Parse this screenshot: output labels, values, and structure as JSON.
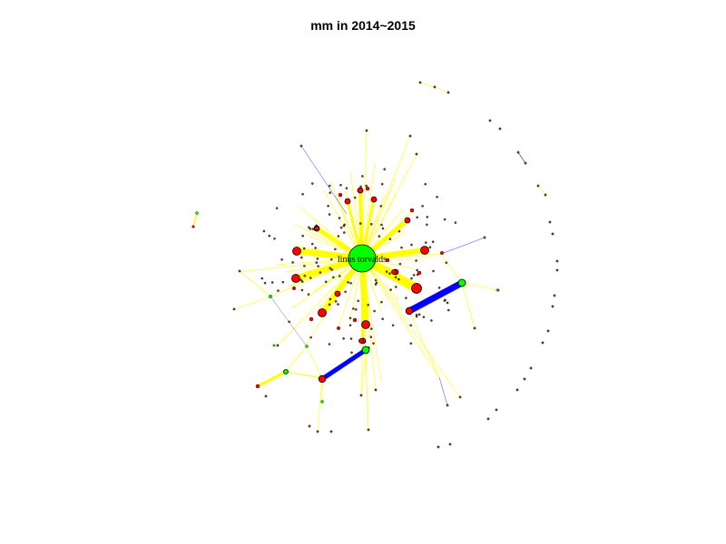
{
  "title": "mm in 2014~2015",
  "hub": {
    "label": "linus torvalds"
  },
  "colors": {
    "hub_node": "#00ff00",
    "red_node": "#ff0000",
    "green_node": "#00ff00",
    "small_node": "#8b4513",
    "yellow_edge": "#ffff00",
    "blue_edge": "#0000ff"
  }
}
